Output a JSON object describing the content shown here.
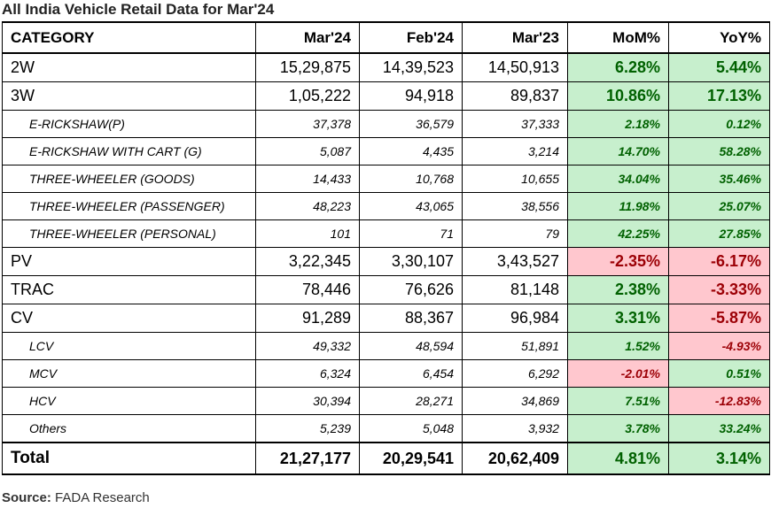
{
  "title": "All India Vehicle Retail Data for Mar'24",
  "headers": [
    "CATEGORY",
    "Mar'24",
    "Feb'24",
    "Mar'23",
    "MoM%",
    "YoY%"
  ],
  "rows": [
    {
      "category": "2W",
      "mar24": "15,29,875",
      "feb24": "14,39,523",
      "mar23": "14,50,913",
      "mom": "6.28%",
      "yoy": "5.44%"
    },
    {
      "category": "3W",
      "mar24": "1,05,222",
      "feb24": "94,918",
      "mar23": "89,837",
      "mom": "10.86%",
      "yoy": "17.13%"
    },
    {
      "category": "E-RICKSHAW(P)",
      "mar24": "37,378",
      "feb24": "36,579",
      "mar23": "37,333",
      "mom": "2.18%",
      "yoy": "0.12%"
    },
    {
      "category": "E-RICKSHAW WITH CART (G)",
      "mar24": "5,087",
      "feb24": "4,435",
      "mar23": "3,214",
      "mom": "14.70%",
      "yoy": "58.28%"
    },
    {
      "category": "THREE-WHEELER (GOODS)",
      "mar24": "14,433",
      "feb24": "10,768",
      "mar23": "10,655",
      "mom": "34.04%",
      "yoy": "35.46%"
    },
    {
      "category": "THREE-WHEELER (PASSENGER)",
      "mar24": "48,223",
      "feb24": "43,065",
      "mar23": "38,556",
      "mom": "11.98%",
      "yoy": "25.07%"
    },
    {
      "category": "THREE-WHEELER (PERSONAL)",
      "mar24": "101",
      "feb24": "71",
      "mar23": "79",
      "mom": "42.25%",
      "yoy": "27.85%"
    },
    {
      "category": "PV",
      "mar24": "3,22,345",
      "feb24": "3,30,107",
      "mar23": "3,43,527",
      "mom": "-2.35%",
      "yoy": "-6.17%"
    },
    {
      "category": "TRAC",
      "mar24": "78,446",
      "feb24": "76,626",
      "mar23": "81,148",
      "mom": "2.38%",
      "yoy": "-3.33%"
    },
    {
      "category": "CV",
      "mar24": "91,289",
      "feb24": "88,367",
      "mar23": "96,984",
      "mom": "3.31%",
      "yoy": "-5.87%"
    },
    {
      "category": "LCV",
      "mar24": "49,332",
      "feb24": "48,594",
      "mar23": "51,891",
      "mom": "1.52%",
      "yoy": "-4.93%"
    },
    {
      "category": "MCV",
      "mar24": "6,324",
      "feb24": "6,454",
      "mar23": "6,292",
      "mom": "-2.01%",
      "yoy": "0.51%"
    },
    {
      "category": "HCV",
      "mar24": "30,394",
      "feb24": "28,271",
      "mar23": "34,869",
      "mom": "7.51%",
      "yoy": "-12.83%"
    },
    {
      "category": "Others",
      "mar24": "5,239",
      "feb24": "5,048",
      "mar23": "3,932",
      "mom": "3.78%",
      "yoy": "33.24%"
    }
  ],
  "total": {
    "category": "Total",
    "mar24": "21,27,177",
    "feb24": "20,29,541",
    "mar23": "20,62,409",
    "mom": "4.81%",
    "yoy": "3.14%"
  },
  "source": {
    "label": "Source:",
    "text": "FADA Research"
  },
  "colors": {
    "positive_bg": "#c7efcd",
    "positive_text": "#006100",
    "negative_bg": "#ffc7ce",
    "negative_text": "#9c0006"
  }
}
